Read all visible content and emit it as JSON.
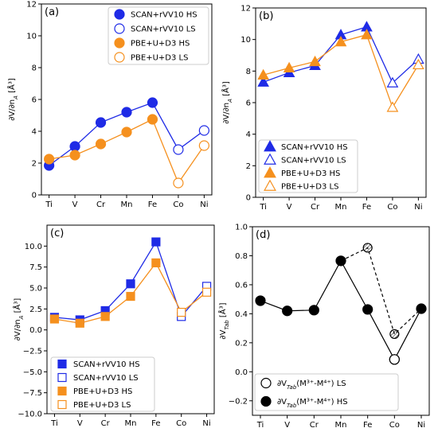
{
  "colors": {
    "scan": "#1f2be6",
    "pbe": "#f5901e",
    "black": "#000000"
  },
  "chart_data": [
    {
      "type": "line",
      "panel_label": "(a)",
      "categories": [
        "Ti",
        "V",
        "Cr",
        "Mn",
        "Fe",
        "Co",
        "Ni"
      ],
      "ylabel": "∂V/∂n_A [Å³]",
      "ylim": [
        0,
        12
      ],
      "yticks": [
        0,
        2,
        4,
        6,
        8,
        10,
        12
      ],
      "legend_position": "top-right",
      "series": [
        {
          "name": "SCAN+rVV10 HS",
          "color": "#1f2be6",
          "marker": "circle",
          "filled": true,
          "x": [
            "Ti",
            "V",
            "Cr",
            "Mn",
            "Fe"
          ],
          "values": [
            1.85,
            3.05,
            4.55,
            5.2,
            5.8
          ]
        },
        {
          "name": "SCAN+rVV10 LS",
          "color": "#1f2be6",
          "marker": "circle",
          "filled": false,
          "x": [
            "Co",
            "Ni"
          ],
          "values": [
            2.85,
            4.05
          ]
        },
        {
          "name": "PBE+U+D3 HS",
          "color": "#f5901e",
          "marker": "circle",
          "filled": true,
          "x": [
            "Ti",
            "V",
            "Cr",
            "Mn",
            "Fe"
          ],
          "values": [
            2.25,
            2.5,
            3.2,
            3.95,
            4.75
          ]
        },
        {
          "name": "PBE+U+D3 LS",
          "color": "#f5901e",
          "marker": "circle",
          "filled": false,
          "x": [
            "Co",
            "Ni"
          ],
          "values": [
            0.75,
            3.1
          ]
        }
      ]
    },
    {
      "type": "line",
      "panel_label": "(b)",
      "categories": [
        "Ti",
        "V",
        "Cr",
        "Mn",
        "Fe",
        "Co",
        "Ni"
      ],
      "ylabel": "∂V/∂n_A [Å³]",
      "ylim": [
        0,
        12
      ],
      "yticks": [
        0,
        2,
        4,
        6,
        8,
        10,
        12
      ],
      "legend_position": "bottom-left",
      "series": [
        {
          "name": "SCAN+rVV10 HS",
          "color": "#1f2be6",
          "marker": "triangle",
          "filled": true,
          "x": [
            "Ti",
            "V",
            "Cr",
            "Mn",
            "Fe"
          ],
          "values": [
            7.3,
            7.9,
            8.35,
            10.3,
            10.8
          ]
        },
        {
          "name": "SCAN+rVV10 LS",
          "color": "#1f2be6",
          "marker": "triangle",
          "filled": false,
          "x": [
            "Co",
            "Ni"
          ],
          "values": [
            7.25,
            8.75
          ]
        },
        {
          "name": "PBE+U+D3 HS",
          "color": "#f5901e",
          "marker": "triangle",
          "filled": true,
          "x": [
            "Ti",
            "V",
            "Cr",
            "Mn",
            "Fe"
          ],
          "values": [
            7.75,
            8.2,
            8.6,
            9.85,
            10.3
          ]
        },
        {
          "name": "PBE+U+D3 LS",
          "color": "#f5901e",
          "marker": "triangle",
          "filled": false,
          "x": [
            "Co",
            "Ni"
          ],
          "values": [
            5.7,
            8.4
          ]
        }
      ]
    },
    {
      "type": "line",
      "panel_label": "(c)",
      "categories": [
        "Ti",
        "V",
        "Cr",
        "Mn",
        "Fe",
        "Co",
        "Ni"
      ],
      "ylabel": "∂V/∂n_A [Å³]",
      "ylim": [
        -10,
        12.5
      ],
      "yticks": [
        -10.0,
        -7.5,
        -5.0,
        -2.5,
        0.0,
        2.5,
        5.0,
        7.5,
        10.0
      ],
      "ytick_labels": [
        "−10.0",
        "−7.5",
        "−5.0",
        "−2.5",
        "0.0",
        "2.5",
        "5.0",
        "7.5",
        "10.0"
      ],
      "legend_position": "bottom-left",
      "series": [
        {
          "name": "SCAN+rVV10 HS",
          "color": "#1f2be6",
          "marker": "square",
          "filled": true,
          "x": [
            "Ti",
            "V",
            "Cr",
            "Mn",
            "Fe"
          ],
          "values": [
            1.5,
            1.2,
            2.3,
            5.5,
            10.5
          ]
        },
        {
          "name": "SCAN+rVV10 LS",
          "color": "#1f2be6",
          "marker": "square",
          "filled": false,
          "x": [
            "Co",
            "Ni"
          ],
          "values": [
            1.6,
            5.2
          ]
        },
        {
          "name": "PBE+U+D3 HS",
          "color": "#f5901e",
          "marker": "square",
          "filled": true,
          "x": [
            "Ti",
            "V",
            "Cr",
            "Mn",
            "Fe"
          ],
          "values": [
            1.3,
            0.8,
            1.6,
            4.0,
            8.0
          ]
        },
        {
          "name": "PBE+U+D3 LS",
          "color": "#f5901e",
          "marker": "square",
          "filled": false,
          "x": [
            "Co",
            "Ni"
          ],
          "values": [
            2.1,
            4.5
          ]
        }
      ]
    },
    {
      "type": "line",
      "panel_label": "(d)",
      "categories": [
        "Ti",
        "V",
        "Cr",
        "Mn",
        "Fe",
        "Co",
        "Ni"
      ],
      "ylabel": "∂V_Tab [Å³]",
      "ylim": [
        -0.3,
        1.0
      ],
      "yticks": [
        -0.2,
        0.0,
        0.2,
        0.4,
        0.6,
        0.8,
        1.0
      ],
      "ytick_labels": [
        "−0.2",
        "0.0",
        "0.2",
        "0.4",
        "0.6",
        "0.8",
        "1.0"
      ],
      "legend_position": "bottom-left",
      "series": [
        {
          "name": "∂V_Tab(M³⁺-M⁴⁺) HS",
          "color": "#000000",
          "marker": "circle",
          "filled": true,
          "dash": false,
          "x": [
            "Ti",
            "V",
            "Cr",
            "Mn",
            "Fe",
            "Co",
            "Ni"
          ],
          "values": [
            0.49,
            0.42,
            0.425,
            0.765,
            0.43,
            0.085,
            0.435
          ]
        },
        {
          "name": "∂V_Tab(M³⁺-M⁴⁺) LS",
          "color": "#000000",
          "marker": "circle",
          "filled": false,
          "dash": true,
          "x": [
            "Mn",
            "Fe",
            "Co",
            "Ni"
          ],
          "values": [
            0.765,
            0.855,
            0.26,
            0.435
          ]
        }
      ],
      "hatched_points": [
        {
          "x": "Fe",
          "value": 0.855
        },
        {
          "x": "Co",
          "value": 0.26
        }
      ],
      "legend_entries": [
        {
          "text": "∂V_Tab(M³⁺-M⁴⁺) LS",
          "filled": false
        },
        {
          "text": "∂V_Tab(M³⁺-M⁴⁺) HS",
          "filled": true
        }
      ]
    }
  ]
}
